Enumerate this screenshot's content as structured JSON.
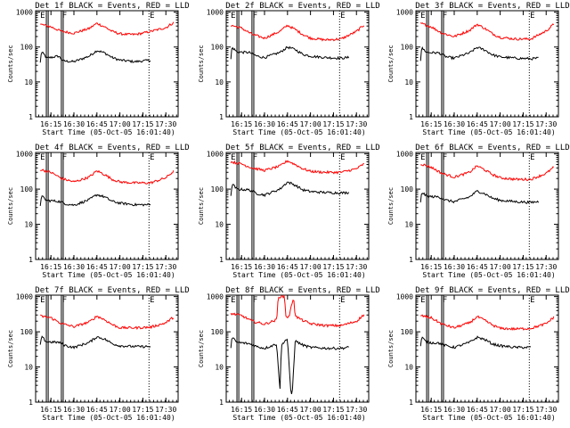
{
  "figure": {
    "x_tick_labels": [
      "16:15",
      "16:30",
      "16:45",
      "17:00",
      "17:15",
      "17:30"
    ],
    "x_ticks_min_after_1600": [
      15,
      30,
      45,
      60,
      75,
      90
    ],
    "x_range_min_after_1600": [
      5,
      98
    ],
    "y_tick_labels": [
      "1",
      "10",
      "100",
      "1000"
    ],
    "y_ticks": [
      1,
      10,
      100,
      1000
    ],
    "y_range": [
      1,
      1100
    ],
    "y_scale": "log",
    "marker_lines_min_after_1600": [
      12,
      13.2,
      21.8,
      23,
      79
    ],
    "colors": {
      "events": "#000000",
      "lld": "#ff0000",
      "axes": "#000000",
      "background": "#ffffff"
    }
  },
  "chart_data": [
    {
      "type": "line",
      "panel": "1f",
      "title": "Det 1f BLACK = Events, RED = LLD",
      "xlabel": "Start Time (05-Oct-05 16:01:40)",
      "ylabel": "Counts/sec",
      "marker_labels": [
        "E",
        "F",
        "E"
      ],
      "series": [
        {
          "name": "Events",
          "color": "#000000",
          "x": [
            8,
            8.5,
            9,
            10,
            11,
            11.6,
            12,
            20,
            23,
            30,
            40,
            45,
            50,
            55,
            60,
            65,
            70,
            75,
            80
          ],
          "y": [
            35,
            62,
            70,
            64,
            58,
            52,
            48,
            55,
            40,
            38,
            55,
            80,
            68,
            50,
            42,
            40,
            38,
            40,
            42
          ]
        },
        {
          "name": "LLD",
          "color": "#ff0000",
          "x": [
            8,
            15,
            22,
            30,
            40,
            45,
            50,
            55,
            60,
            65,
            70,
            75,
            80,
            90,
            95
          ],
          "y": [
            450,
            380,
            280,
            250,
            340,
            480,
            380,
            280,
            240,
            230,
            230,
            250,
            280,
            360,
            500
          ]
        }
      ]
    },
    {
      "type": "line",
      "panel": "2f",
      "title": "Det 2f BLACK = Events, RED = LLD",
      "xlabel": "Start Time (05-Oct-05 16:01:40)",
      "ylabel": "Counts/sec",
      "marker_labels": [
        "E",
        "F",
        "E"
      ],
      "series": [
        {
          "name": "Events",
          "color": "#000000",
          "x": [
            8,
            8.5,
            9,
            10,
            11,
            12,
            20,
            25,
            30,
            40,
            45,
            50,
            55,
            60,
            70,
            80,
            85
          ],
          "y": [
            45,
            85,
            95,
            88,
            80,
            72,
            70,
            55,
            50,
            70,
            100,
            85,
            62,
            55,
            50,
            48,
            50
          ]
        },
        {
          "name": "LLD",
          "color": "#ff0000",
          "x": [
            8,
            15,
            22,
            30,
            40,
            45,
            50,
            55,
            60,
            70,
            80,
            90,
            95
          ],
          "y": [
            420,
            350,
            230,
            180,
            280,
            420,
            320,
            230,
            180,
            160,
            170,
            280,
            430
          ]
        }
      ]
    },
    {
      "type": "line",
      "panel": "3f",
      "title": "Det 3f BLACK = Events, RED = LLD",
      "xlabel": "Start Time (05-Oct-05 16:01:40)",
      "ylabel": "Counts/sec",
      "marker_labels": [
        "E",
        "F",
        "E"
      ],
      "series": [
        {
          "name": "Events",
          "color": "#000000",
          "x": [
            8,
            8.5,
            9,
            10,
            11,
            12,
            20,
            25,
            30,
            40,
            45,
            50,
            55,
            60,
            70,
            80,
            85
          ],
          "y": [
            42,
            80,
            92,
            85,
            78,
            70,
            68,
            52,
            48,
            68,
            98,
            82,
            60,
            52,
            48,
            46,
            48
          ]
        },
        {
          "name": "LLD",
          "color": "#ff0000",
          "x": [
            8,
            15,
            22,
            30,
            40,
            45,
            50,
            55,
            60,
            70,
            80,
            90,
            95
          ],
          "y": [
            480,
            380,
            250,
            200,
            300,
            450,
            340,
            240,
            190,
            170,
            170,
            290,
            450
          ]
        }
      ]
    },
    {
      "type": "line",
      "panel": "4f",
      "title": "Det 4f BLACK = Events, RED = LLD",
      "xlabel": "Start Time (05-Oct-05 16:01:40)",
      "ylabel": "Counts/sec",
      "marker_labels": [
        "E",
        "F",
        "E"
      ],
      "series": [
        {
          "name": "Events",
          "color": "#000000",
          "x": [
            8,
            8.5,
            9,
            10,
            11,
            12,
            20,
            25,
            30,
            40,
            45,
            50,
            55,
            60,
            70,
            80
          ],
          "y": [
            35,
            55,
            62,
            58,
            52,
            48,
            45,
            38,
            35,
            50,
            70,
            60,
            45,
            40,
            36,
            36
          ]
        },
        {
          "name": "LLD",
          "color": "#ff0000",
          "x": [
            8,
            15,
            22,
            30,
            40,
            45,
            50,
            55,
            60,
            70,
            80,
            90,
            95
          ],
          "y": [
            360,
            300,
            200,
            160,
            220,
            330,
            260,
            190,
            160,
            150,
            150,
            210,
            320
          ]
        }
      ]
    },
    {
      "type": "line",
      "panel": "5f",
      "title": "Det 5f BLACK = Events, RED = LLD",
      "xlabel": "Start Time (05-Oct-05 16:01:40)",
      "ylabel": "Counts/sec",
      "marker_labels": [
        "E",
        "F",
        "E"
      ],
      "series": [
        {
          "name": "Events",
          "color": "#000000",
          "x": [
            8,
            8.5,
            9,
            10,
            11,
            12,
            20,
            25,
            30,
            40,
            45,
            50,
            55,
            60,
            70,
            80,
            85
          ],
          "y": [
            60,
            110,
            135,
            125,
            110,
            100,
            95,
            75,
            68,
            100,
            160,
            130,
            95,
            85,
            80,
            78,
            80
          ]
        },
        {
          "name": "LLD",
          "color": "#ff0000",
          "x": [
            8,
            15,
            22,
            30,
            40,
            45,
            50,
            55,
            60,
            70,
            80,
            90,
            95
          ],
          "y": [
            600,
            520,
            400,
            340,
            450,
            640,
            500,
            380,
            320,
            300,
            300,
            380,
            520
          ]
        }
      ]
    },
    {
      "type": "line",
      "panel": "6f",
      "title": "Det 6f BLACK = Events, RED = LLD",
      "xlabel": "Start Time (05-Oct-05 16:01:40)",
      "ylabel": "Counts/sec",
      "marker_labels": [
        "E",
        "F",
        "E"
      ],
      "series": [
        {
          "name": "Events",
          "color": "#000000",
          "x": [
            8,
            8.5,
            9,
            10,
            11,
            12,
            20,
            25,
            30,
            40,
            45,
            50,
            55,
            60,
            70,
            80,
            85
          ],
          "y": [
            40,
            70,
            80,
            75,
            68,
            62,
            60,
            48,
            44,
            60,
            88,
            74,
            55,
            48,
            44,
            42,
            44
          ]
        },
        {
          "name": "LLD",
          "color": "#ff0000",
          "x": [
            8,
            15,
            22,
            30,
            40,
            45,
            50,
            55,
            60,
            70,
            80,
            90,
            95
          ],
          "y": [
            520,
            420,
            280,
            220,
            300,
            460,
            350,
            260,
            210,
            190,
            190,
            280,
            420
          ]
        }
      ]
    },
    {
      "type": "line",
      "panel": "7f",
      "title": "Det 7f BLACK = Events, RED = LLD",
      "xlabel": "Start Time (05-Oct-05 16:01:40)",
      "ylabel": "Counts/sec",
      "marker_labels": [
        "E",
        "F",
        "E"
      ],
      "series": [
        {
          "name": "Events",
          "color": "#000000",
          "x": [
            8,
            8.5,
            9,
            10,
            11,
            12,
            20,
            25,
            30,
            40,
            45,
            50,
            55,
            60,
            70,
            80
          ],
          "y": [
            40,
            62,
            70,
            65,
            58,
            52,
            50,
            40,
            36,
            50,
            72,
            62,
            46,
            40,
            38,
            38
          ]
        },
        {
          "name": "LLD",
          "color": "#ff0000",
          "x": [
            8,
            15,
            22,
            30,
            40,
            45,
            50,
            55,
            60,
            70,
            80,
            90,
            95
          ],
          "y": [
            280,
            250,
            170,
            140,
            190,
            280,
            220,
            160,
            130,
            130,
            135,
            180,
            260
          ]
        }
      ]
    },
    {
      "type": "line",
      "panel": "8f",
      "title": "Det 8f BLACK = Events, RED = LLD",
      "xlabel": "Start Time (05-Oct-05 16:01:40)",
      "ylabel": "Counts/sec",
      "marker_labels": [
        "E",
        "F",
        "E"
      ],
      "series": [
        {
          "name": "Events",
          "color": "#000000",
          "x": [
            8,
            8.5,
            9,
            10,
            11,
            12,
            20,
            25,
            30,
            38,
            40,
            41,
            43,
            45,
            47,
            48,
            50,
            55,
            60,
            70,
            80,
            85
          ],
          "y": [
            35,
            58,
            66,
            62,
            55,
            50,
            46,
            38,
            34,
            45,
            2,
            40,
            55,
            62,
            2.2,
            1.5,
            55,
            42,
            36,
            34,
            34,
            36
          ]
        },
        {
          "name": "LLD",
          "color": "#ff0000",
          "x": [
            8,
            15,
            22,
            30,
            38,
            39,
            43,
            44,
            45,
            46,
            49,
            50,
            55,
            60,
            70,
            80,
            90,
            95
          ],
          "y": [
            330,
            290,
            200,
            165,
            220,
            1000,
            1000,
            280,
            260,
            270,
            1000,
            280,
            210,
            170,
            150,
            150,
            200,
            310
          ]
        }
      ]
    },
    {
      "type": "line",
      "panel": "9f",
      "title": "Det 9f BLACK = Events, RED = LLD",
      "xlabel": "Start Time (05-Oct-05 16:01:40)",
      "ylabel": "Counts/sec",
      "marker_labels": [
        "E",
        "F",
        "E"
      ],
      "series": [
        {
          "name": "Events",
          "color": "#000000",
          "x": [
            8,
            8.5,
            9,
            10,
            11,
            12,
            20,
            25,
            30,
            40,
            45,
            50,
            55,
            60,
            70,
            80
          ],
          "y": [
            38,
            60,
            68,
            62,
            55,
            50,
            48,
            40,
            36,
            50,
            70,
            60,
            45,
            40,
            36,
            36
          ]
        },
        {
          "name": "LLD",
          "color": "#ff0000",
          "x": [
            8,
            15,
            22,
            30,
            40,
            45,
            50,
            55,
            60,
            70,
            80,
            90,
            95
          ],
          "y": [
            290,
            250,
            165,
            130,
            180,
            270,
            210,
            155,
            125,
            120,
            125,
            170,
            260
          ]
        }
      ]
    }
  ]
}
